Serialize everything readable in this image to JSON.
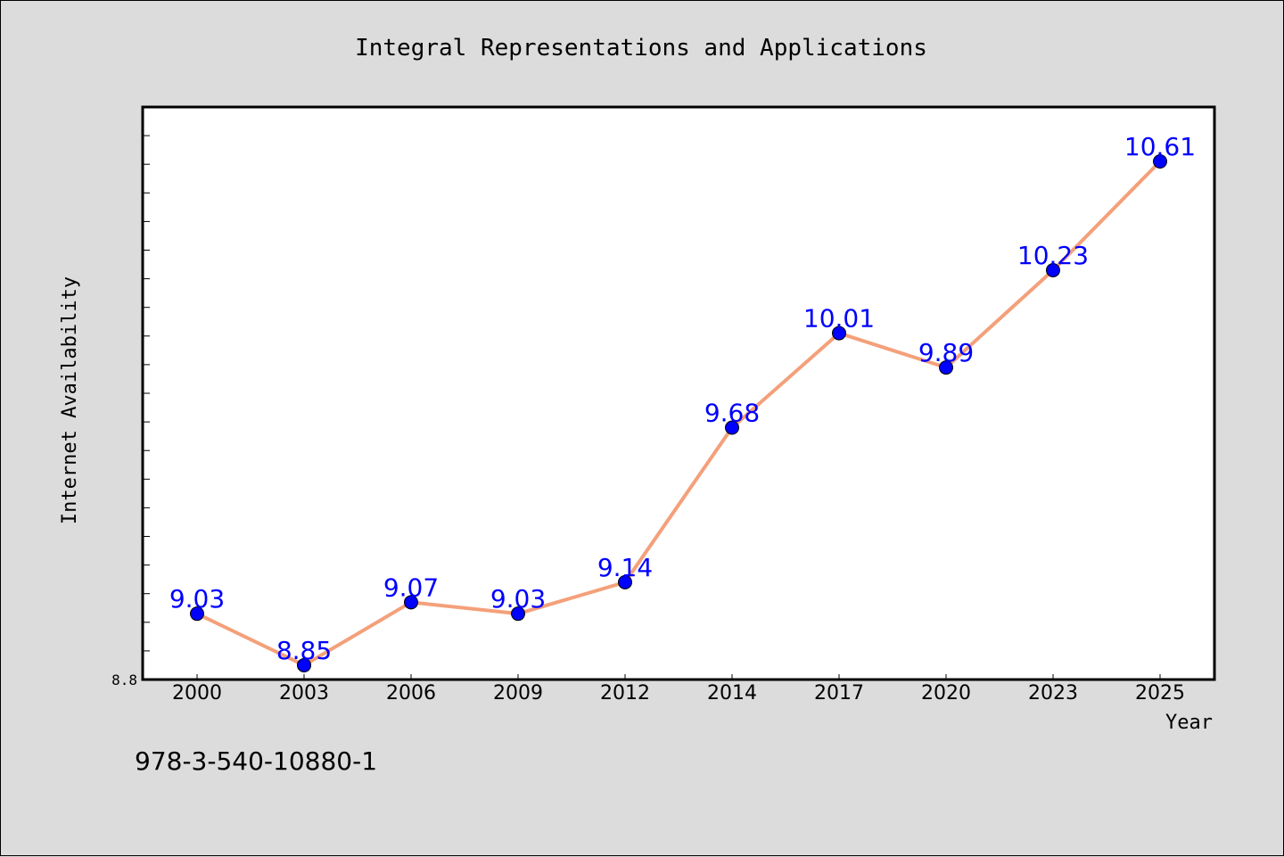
{
  "chart_data": {
    "type": "line",
    "title": "Integral Representations and Applications",
    "xlabel": "Year",
    "ylabel": "Internet Availability",
    "categories": [
      "2000",
      "2003",
      "2006",
      "2009",
      "2012",
      "2014",
      "2017",
      "2020",
      "2023",
      "2025"
    ],
    "series": [
      {
        "values": [
          9.03,
          8.85,
          9.07,
          9.03,
          9.14,
          9.68,
          10.01,
          9.89,
          10.23,
          10.61
        ],
        "data_labels": [
          "9.03",
          "8.85",
          "9.07",
          "9.03",
          "9.14",
          "9.68",
          "10.01",
          "9.89",
          "10.23",
          "10.61"
        ]
      }
    ],
    "ylim": [
      8.8,
      10.8
    ],
    "ytick_labels": [
      "8.8"
    ],
    "grid": false,
    "line_color": "#f4a07a",
    "marker_color": "#0000ff",
    "label_color": "#0000ff",
    "background_color": "#dcdcdc",
    "plot_background_color": "#ffffff"
  },
  "footer_text": "978-3-540-10880-1"
}
